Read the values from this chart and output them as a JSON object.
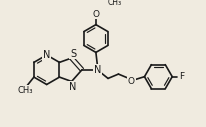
{
  "bg_color": "#f0ebe0",
  "line_color": "#1a1a1a",
  "lw": 1.2,
  "lw2": 0.85,
  "fs": 6.5,
  "figsize": [
    2.07,
    1.27
  ],
  "dpi": 100,
  "xlim": [
    0,
    207
  ],
  "ylim": [
    0,
    127
  ]
}
